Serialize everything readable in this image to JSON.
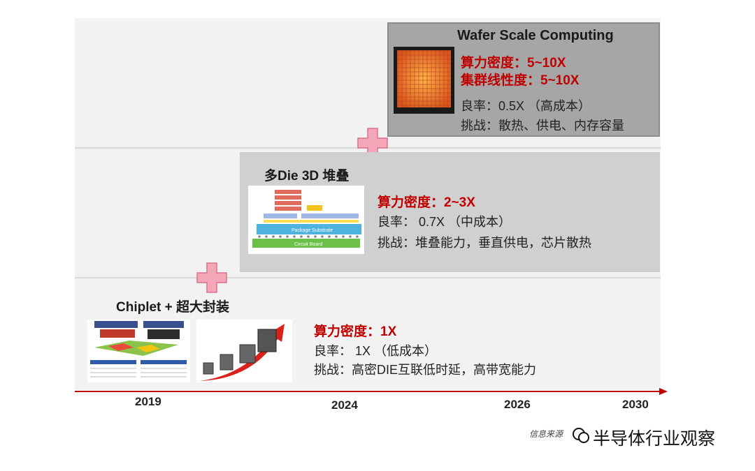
{
  "stages": {
    "wafer": {
      "title": "Wafer Scale Computing",
      "density": "算力密度：5~10X",
      "linearity": "集群线性度：5~10X",
      "yield": "良率：0.5X （高成本）",
      "challenge": "挑战：散热、供电、内存容量"
    },
    "stack": {
      "title": "多Die 3D 堆叠",
      "density": "算力密度：2~3X",
      "yield": "良率： 0.7X （中成本）",
      "challenge": "挑战：堆叠能力，垂直供电，芯片散热",
      "diagram_labels": {
        "substrate": "Package Substrate",
        "board": "Circuit Board"
      }
    },
    "chiplet": {
      "title": "Chiplet + 超大封装",
      "density": "算力密度：1X",
      "yield": "良率： 1X （低成本）",
      "challenge": "挑战：高密DIE互联低时延，高带宽能力"
    }
  },
  "timeline": {
    "years": [
      "2019",
      "2024",
      "2026",
      "2030"
    ],
    "arrow_color": "#c00000"
  },
  "colors": {
    "plus": "#f4a7b9",
    "plus_stroke": "#d9728c",
    "highlight": "#c00000"
  },
  "footer": {
    "source": "信息来源",
    "watermark": "半导体行业观察"
  }
}
